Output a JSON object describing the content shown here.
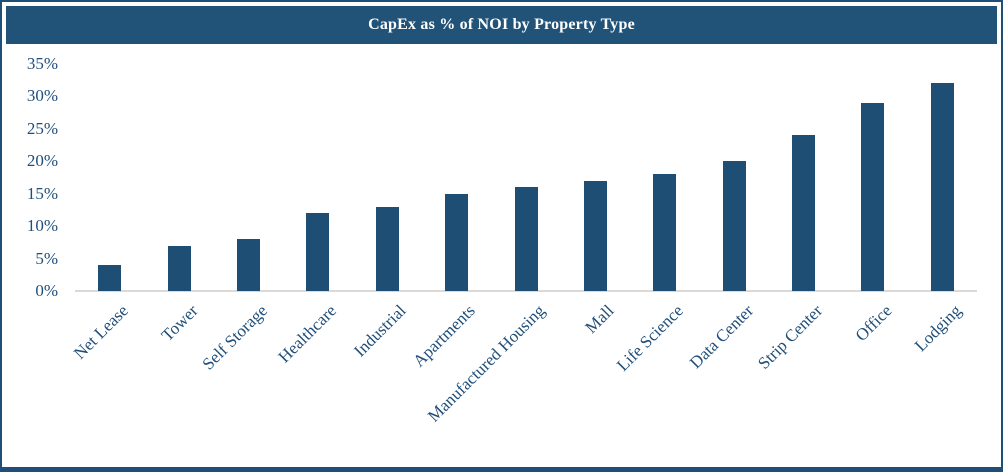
{
  "header": {
    "title": "CapEx as % of NOI by Property Type"
  },
  "chart_data": {
    "type": "bar",
    "title": "CapEx as % of NOI by Property Type",
    "categories": [
      "Net Lease",
      "Tower",
      "Self Storage",
      "Healthcare",
      "Industrial",
      "Apartments",
      "Manufactured Housing",
      "Mall",
      "Life Science",
      "Data Center",
      "Strip Center",
      "Office",
      "Lodging"
    ],
    "values": [
      4,
      7,
      8,
      12,
      13,
      15,
      16,
      17,
      18,
      20,
      24,
      29,
      32
    ],
    "unit": "%",
    "xlabel": "",
    "ylabel": "",
    "ylim": [
      0,
      35
    ],
    "ytick_step": 5,
    "ytick_labels": [
      "0%",
      "5%",
      "10%",
      "15%",
      "20%",
      "25%",
      "30%",
      "35%"
    ],
    "grid": false,
    "legend": "none"
  },
  "colors": {
    "header_bg": "#215278",
    "title_text": "#ffffff",
    "bar": "#1f4e74",
    "label_text": "#1f4e79",
    "axis_line": "#d9d9d9",
    "frame_border": "#1f4e79"
  }
}
